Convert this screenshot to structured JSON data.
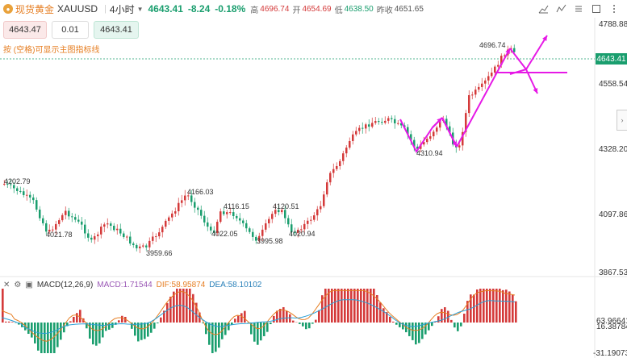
{
  "header": {
    "symbol_icon": "gold-coin-icon",
    "symbol_name": "现货黄金",
    "symbol_code": "XAUUSD",
    "timeframe": "4小时",
    "last_price": "4643.41",
    "change": "-8.24",
    "change_pct": "-0.18%",
    "ohlc": [
      {
        "label": "高",
        "value": "4696.74"
      },
      {
        "label": "开",
        "value": "4654.69"
      },
      {
        "label": "低",
        "value": "4638.50"
      },
      {
        "label": "昨收",
        "value": "4651.65"
      }
    ]
  },
  "toolbar": [
    "chart-type-icon",
    "indicator-icon",
    "settings-icon",
    "fullscreen-icon",
    "more-icon"
  ],
  "order": {
    "sell_price": "4643.47",
    "quantity": "0.01",
    "buy_price": "4643.41"
  },
  "hint": "按 (空格)可显示主图指标线",
  "price_axis": {
    "labels": [
      "4788.88",
      "4643.41",
      "4558.54",
      "4328.20",
      "4097.86",
      "3867.53"
    ],
    "current": "4643.41"
  },
  "annotations": {
    "a1": "4202.79",
    "a2": "4021.78",
    "a3": "3959.66",
    "a4": "4166.03",
    "a5": "4116.15",
    "a6": "4022.05",
    "a7": "4120.51",
    "a8": "3995.98",
    "a9": "4020.94",
    "a10": "4310.94",
    "a11": "4696.74"
  },
  "macd": {
    "title": "MACD(12,26,9)",
    "macd_label": "MACD:1.71544",
    "dif_label": "DIF:58.95874",
    "dea_label": "DEA:58.10102",
    "axis": [
      "63.96641",
      "16.38784",
      "-31.19073"
    ],
    "colors": {
      "up": "#d43a3a",
      "down": "#1a9e6e",
      "dif": "#e67e22",
      "dea": "#2a9fd6"
    }
  },
  "colors": {
    "up": "#d43a3a",
    "down": "#1a9e6e",
    "draw": "#e619e6",
    "current_line": "#1a9e6e"
  }
}
